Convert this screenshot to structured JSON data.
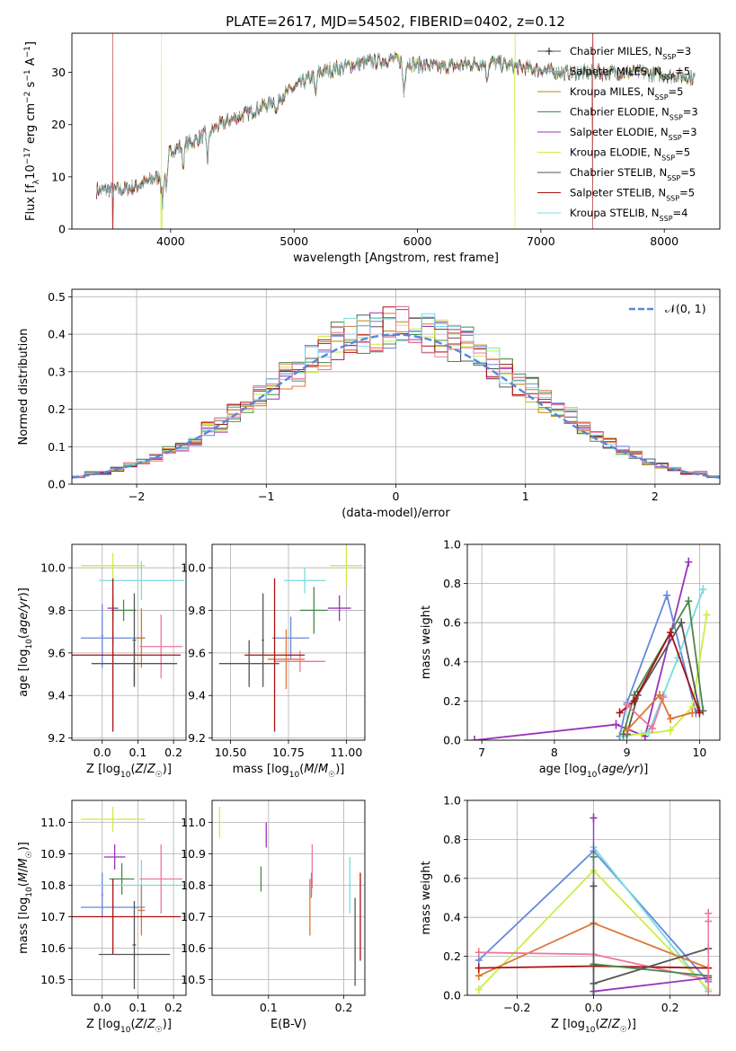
{
  "title": "PLATE=2617, MJD=54502, FIBERID=0402, z=0.12",
  "colors": {
    "chabrier_miles": "#6688dd",
    "salpeter_miles": "#dd7733",
    "kroupa_miles": "#b8860b",
    "chabrier_elodie": "#4a8a4a",
    "salpeter_elodie": "#9933bb",
    "kroupa_elodie": "#ccee44",
    "chabrier_stelib": "#555555",
    "salpeter_stelib": "#aa1111",
    "kroupa_stelib": "#77dddd",
    "pink": "#ee7799",
    "normal": "#5588dd",
    "grid": "#b0b0b0"
  },
  "chart_data": [
    {
      "id": "spectrum",
      "type": "line",
      "xlabel": "wavelength [Angstrom, rest frame]",
      "ylabel": "Flux [f_λ10^-17 erg cm^-2 s^-1 A^-1]",
      "xlim": [
        3200,
        8450
      ],
      "ylim": [
        0,
        37.5
      ],
      "xticks": [
        4000,
        5000,
        6000,
        7000,
        8000
      ],
      "yticks": [
        0,
        10,
        20,
        30
      ],
      "legend_position": "right",
      "series": [
        {
          "name": "Chabrier MILES, N_SSP=3",
          "name_main": "Chabrier MILES, N",
          "name_sub": "SSP",
          "name_tail": "=3",
          "color_key": "chabrier_stelib",
          "marker": "+"
        },
        {
          "name": "Salpeter MILES, N_SSP=5",
          "name_main": "Salpeter MILES, N",
          "name_sub": "SSP",
          "name_tail": "=5",
          "color_key": "pink"
        },
        {
          "name": "Kroupa MILES, N_SSP=5",
          "name_main": "Kroupa MILES, N",
          "name_sub": "SSP",
          "name_tail": "=5",
          "color_key": "kroupa_miles"
        },
        {
          "name": "Chabrier ELODIE, N_SSP=3",
          "name_main": "Chabrier ELODIE, N",
          "name_sub": "SSP",
          "name_tail": "=3",
          "color_key": "chabrier_elodie"
        },
        {
          "name": "Salpeter ELODIE, N_SSP=3",
          "name_main": "Salpeter ELODIE, N",
          "name_sub": "SSP",
          "name_tail": "=3",
          "color_key": "salpeter_elodie"
        },
        {
          "name": "Kroupa ELODIE, N_SSP=5",
          "name_main": "Kroupa ELODIE, N",
          "name_sub": "SSP",
          "name_tail": "=5",
          "color_key": "kroupa_elodie"
        },
        {
          "name": "Chabrier STELIB, N_SSP=5",
          "name_main": "Chabrier STELIB, N",
          "name_sub": "SSP",
          "name_tail": "=5",
          "color_key": "chabrier_stelib"
        },
        {
          "name": "Salpeter STELIB, N_SSP=5",
          "name_main": "Salpeter STELIB, N",
          "name_sub": "SSP",
          "name_tail": "=5",
          "color_key": "salpeter_stelib"
        },
        {
          "name": "Kroupa STELIB, N_SSP=4",
          "name_main": "Kroupa STELIB, N",
          "name_sub": "SSP",
          "name_tail": "=4",
          "color_key": "kroupa_stelib"
        }
      ],
      "continuum": [
        [
          3400,
          7.5
        ],
        [
          3600,
          7.5
        ],
        [
          3700,
          8
        ],
        [
          3800,
          9
        ],
        [
          3900,
          10
        ],
        [
          4000,
          15
        ],
        [
          4200,
          17
        ],
        [
          4400,
          20
        ],
        [
          4600,
          22
        ],
        [
          4800,
          24
        ],
        [
          5000,
          27
        ],
        [
          5200,
          30
        ],
        [
          5400,
          31
        ],
        [
          5600,
          32
        ],
        [
          5800,
          32.5
        ],
        [
          6000,
          31.5
        ],
        [
          6200,
          31
        ],
        [
          6400,
          31.5
        ],
        [
          6600,
          32
        ],
        [
          6800,
          31
        ],
        [
          7000,
          30.5
        ],
        [
          7200,
          30
        ],
        [
          7400,
          30
        ],
        [
          7600,
          30
        ],
        [
          7800,
          30
        ],
        [
          8000,
          29.5
        ],
        [
          8250,
          29
        ]
      ],
      "dips": [
        [
          3934,
          7
        ],
        [
          3968,
          6
        ],
        [
          4102,
          4
        ],
        [
          4300,
          5
        ],
        [
          4861,
          3
        ],
        [
          5175,
          4
        ],
        [
          5890,
          6
        ],
        [
          6563,
          3
        ]
      ],
      "spikes_to_zero": [
        [
          3530,
          "salpeter_stelib"
        ],
        [
          3925,
          "kroupa_elodie"
        ],
        [
          6790,
          "kroupa_elodie"
        ],
        [
          7420,
          "salpeter_stelib"
        ]
      ]
    },
    {
      "id": "residuals",
      "type": "histogram",
      "xlabel": "(data-model)/error",
      "ylabel": "Normed distribution",
      "xlim": [
        -2.5,
        2.5
      ],
      "ylim": [
        0,
        0.52
      ],
      "xticks": [
        -2,
        -1,
        0,
        1,
        2
      ],
      "yticks": [
        0.0,
        0.1,
        0.2,
        0.3,
        0.4,
        0.5
      ],
      "bins": 50,
      "legend_position": "top-right",
      "legend": "𝒩(0,1)",
      "legend_main": "𝒩(0, 1)",
      "reference_curve": "normal pdf, mean 0, sigma 1",
      "envelope": [
        0.02,
        0.03,
        0.03,
        0.04,
        0.05,
        0.06,
        0.07,
        0.09,
        0.1,
        0.12,
        0.15,
        0.16,
        0.19,
        0.21,
        0.24,
        0.25,
        0.29,
        0.3,
        0.33,
        0.35,
        0.38,
        0.39,
        0.4,
        0.41,
        0.42,
        0.42,
        0.41,
        0.4,
        0.39,
        0.38,
        0.37,
        0.34,
        0.32,
        0.3,
        0.27,
        0.25,
        0.22,
        0.2,
        0.18,
        0.15,
        0.13,
        0.11,
        0.09,
        0.08,
        0.06,
        0.05,
        0.04,
        0.03,
        0.03,
        0.02
      ]
    },
    {
      "id": "z_age",
      "type": "scatter",
      "xlabel": "Z [log10(Z/Z☉)]",
      "ylabel": "age  [log10(age/yr)]",
      "xlim": [
        -0.085,
        0.235
      ],
      "ylim": [
        9.19,
        10.11
      ],
      "xticks": [
        0.0,
        0.1,
        0.2
      ],
      "yticks": [
        9.2,
        9.4,
        9.6,
        9.8,
        10.0
      ],
      "points": [
        {
          "color_key": "kroupa_elodie",
          "x": 0.03,
          "xerr": 0.09,
          "y": 10.01,
          "yerr": 0.06
        },
        {
          "color_key": "kroupa_stelib",
          "x": 0.11,
          "xerr": 0.12,
          "y": 9.94,
          "yerr": 0.09
        },
        {
          "color_key": "chabrier_miles",
          "x": 0.0,
          "xerr": 0.003,
          "y": 9.68,
          "yerr": 0.15
        },
        {
          "color_key": "chabrier_miles",
          "x": 0.03,
          "xerr": 0.09,
          "y": 9.67,
          "yerr": 0.03
        },
        {
          "color_key": "salpeter_elodie",
          "x": 0.03,
          "xerr": 0.015,
          "y": 9.81,
          "yerr": 0.05
        },
        {
          "color_key": "chabrier_elodie",
          "x": 0.06,
          "xerr": 0.035,
          "y": 9.8,
          "yerr": 0.05
        },
        {
          "color_key": "salpeter_miles",
          "x": 0.11,
          "xerr": 0.01,
          "y": 9.67,
          "yerr": 0.14
        },
        {
          "color_key": "pink",
          "x": 0.165,
          "xerr": 0.06,
          "y": 9.63,
          "yerr": 0.15
        },
        {
          "color_key": "salpeter_stelib",
          "x": 0.03,
          "xerr": 0.19,
          "y": 9.59,
          "yerr": 0.36
        },
        {
          "color_key": "chabrier_stelib",
          "x": 0.09,
          "xerr": 0.12,
          "y": 9.55,
          "yerr": 0.1
        },
        {
          "color_key": "chabrier_stelib",
          "x": 0.09,
          "xerr": 0.005,
          "y": 9.66,
          "yerr": 0.22
        }
      ]
    },
    {
      "id": "mass_age",
      "type": "scatter",
      "xlabel": "mass [log10(M/M☉)]",
      "ylabel": "",
      "xlim": [
        10.42,
        11.08
      ],
      "ylim": [
        9.19,
        10.11
      ],
      "xticks": [
        10.5,
        10.75,
        11.0
      ],
      "yticks": [
        9.2,
        9.4,
        9.6,
        9.8,
        10.0
      ],
      "points": [
        {
          "color_key": "kroupa_elodie",
          "x": 11.0,
          "xerr": 0.07,
          "y": 10.01,
          "yerr": 0.09
        },
        {
          "color_key": "kroupa_stelib",
          "x": 10.82,
          "xerr": 0.09,
          "y": 9.94,
          "yerr": 0.06
        },
        {
          "color_key": "chabrier_miles",
          "x": 10.76,
          "xerr": 0.08,
          "y": 9.67,
          "yerr": 0.1
        },
        {
          "color_key": "salpeter_elodie",
          "x": 10.97,
          "xerr": 0.05,
          "y": 9.81,
          "yerr": 0.06
        },
        {
          "color_key": "chabrier_elodie",
          "x": 10.86,
          "xerr": 0.06,
          "y": 9.8,
          "yerr": 0.11
        },
        {
          "color_key": "salpeter_miles",
          "x": 10.74,
          "xerr": 0.08,
          "y": 9.57,
          "yerr": 0.14
        },
        {
          "color_key": "pink",
          "x": 10.8,
          "xerr": 0.11,
          "y": 9.56,
          "yerr": 0.05
        },
        {
          "color_key": "salpeter_stelib",
          "x": 10.69,
          "xerr": 0.13,
          "y": 9.59,
          "yerr": 0.36
        },
        {
          "color_key": "chabrier_stelib",
          "x": 10.58,
          "xerr": 0.13,
          "y": 9.55,
          "yerr": 0.11
        },
        {
          "color_key": "chabrier_stelib",
          "x": 10.64,
          "xerr": 0.005,
          "y": 9.66,
          "yerr": 0.22
        }
      ]
    },
    {
      "id": "age_weight",
      "type": "line",
      "xlabel": "age  [log10(age/yr)]",
      "ylabel": "mass weight",
      "xlim": [
        6.8,
        10.28
      ],
      "ylim": [
        0,
        1
      ],
      "xticks": [
        7,
        8,
        9,
        10
      ],
      "yticks": [
        0.0,
        0.2,
        0.4,
        0.6,
        0.8,
        1.0
      ],
      "series": [
        {
          "color_key": "salpeter_elodie",
          "x": [
            6.9,
            8.85,
            9.25,
            9.85
          ],
          "y": [
            0.0,
            0.08,
            0.02,
            0.91
          ]
        },
        {
          "color_key": "chabrier_miles",
          "x": [
            8.9,
            9.0,
            9.55,
            9.95
          ],
          "y": [
            0.02,
            0.19,
            0.74,
            0.14
          ]
        },
        {
          "color_key": "kroupa_stelib",
          "x": [
            8.95,
            9.3,
            9.5,
            9.7,
            10.05
          ],
          "y": [
            0.02,
            0.04,
            0.23,
            0.42,
            0.77
          ]
        },
        {
          "color_key": "kroupa_elodie",
          "x": [
            8.95,
            9.2,
            9.6,
            9.9,
            10.1
          ],
          "y": [
            0.03,
            0.03,
            0.05,
            0.17,
            0.64
          ]
        },
        {
          "color_key": "chabrier_elodie",
          "x": [
            8.95,
            9.1,
            9.85,
            10.05
          ],
          "y": [
            0.03,
            0.23,
            0.71,
            0.15
          ]
        },
        {
          "color_key": "chabrier_stelib",
          "x": [
            9.0,
            9.15,
            9.75,
            10.0
          ],
          "y": [
            0.03,
            0.23,
            0.6,
            0.15
          ]
        },
        {
          "color_key": "salpeter_stelib",
          "x": [
            8.9,
            9.1,
            9.6,
            10.0
          ],
          "y": [
            0.14,
            0.2,
            0.55,
            0.14
          ]
        },
        {
          "color_key": "pink",
          "x": [
            9.0,
            9.35,
            9.5
          ],
          "y": [
            0.18,
            0.06,
            0.22
          ]
        },
        {
          "color_key": "salpeter_miles",
          "x": [
            9.0,
            9.45,
            9.6,
            9.9
          ],
          "y": [
            0.05,
            0.23,
            0.11,
            0.14
          ]
        }
      ]
    },
    {
      "id": "z_mass",
      "type": "scatter",
      "xlabel": "Z [log10(Z/Z☉)]",
      "ylabel": "mass [log10(M/M☉)]",
      "xlim": [
        -0.085,
        0.235
      ],
      "ylim": [
        10.45,
        11.07
      ],
      "xticks": [
        0.0,
        0.1,
        0.2
      ],
      "yticks": [
        10.5,
        10.6,
        10.7,
        10.8,
        10.9,
        11.0
      ],
      "points": [
        {
          "color_key": "kroupa_elodie",
          "x": 0.03,
          "xerr": 0.09,
          "y": 11.01,
          "yerr": 0.04
        },
        {
          "color_key": "salpeter_elodie",
          "x": 0.035,
          "xerr": 0.03,
          "y": 10.89,
          "yerr": 0.04
        },
        {
          "color_key": "chabrier_miles",
          "x": 0.0,
          "xerr": 0.003,
          "y": 10.77,
          "yerr": 0.07
        },
        {
          "color_key": "chabrier_miles",
          "x": 0.03,
          "xerr": 0.09,
          "y": 10.73,
          "yerr": 0.005
        },
        {
          "color_key": "chabrier_elodie",
          "x": 0.055,
          "xerr": 0.035,
          "y": 10.82,
          "yerr": 0.05
        },
        {
          "color_key": "kroupa_stelib",
          "x": 0.11,
          "xerr": 0.12,
          "y": 10.8,
          "yerr": 0.08
        },
        {
          "color_key": "pink",
          "x": 0.165,
          "xerr": 0.06,
          "y": 10.82,
          "yerr": 0.11
        },
        {
          "color_key": "salpeter_miles",
          "x": 0.11,
          "xerr": 0.01,
          "y": 10.72,
          "yerr": 0.08
        },
        {
          "color_key": "salpeter_stelib",
          "x": 0.03,
          "xerr": 0.19,
          "y": 10.7,
          "yerr": 0.12
        },
        {
          "color_key": "chabrier_stelib",
          "x": 0.09,
          "xerr": 0.1,
          "y": 10.58,
          "yerr": 0.005
        },
        {
          "color_key": "chabrier_stelib",
          "x": 0.09,
          "xerr": 0.005,
          "y": 10.61,
          "yerr": 0.14
        }
      ]
    },
    {
      "id": "ebv_mass",
      "type": "scatter",
      "xlabel": "E(B-V)",
      "ylabel": "",
      "xlim": [
        0.025,
        0.228
      ],
      "ylim": [
        10.45,
        11.07
      ],
      "xticks": [
        0.1,
        0.2
      ],
      "yticks": [
        10.5,
        10.6,
        10.7,
        10.8,
        10.9,
        11.0
      ],
      "points": [
        {
          "color_key": "kroupa_elodie",
          "x": 0.035,
          "y": 11.0,
          "yerr": 0.05
        },
        {
          "color_key": "chabrier_elodie",
          "x": 0.09,
          "y": 10.82,
          "yerr": 0.04
        },
        {
          "color_key": "salpeter_elodie",
          "x": 0.097,
          "y": 10.96,
          "yerr": 0.04
        },
        {
          "color_key": "chabrier_miles",
          "x": 0.157,
          "y": 10.8,
          "yerr": 0.04
        },
        {
          "color_key": "salpeter_miles",
          "x": 0.155,
          "y": 10.73,
          "yerr": 0.09
        },
        {
          "color_key": "pink",
          "x": 0.158,
          "y": 10.86,
          "yerr": 0.07
        },
        {
          "color_key": "kroupa_stelib",
          "x": 0.208,
          "y": 10.8,
          "yerr": 0.09
        },
        {
          "color_key": "chabrier_stelib",
          "x": 0.215,
          "y": 10.62,
          "yerr": 0.14
        },
        {
          "color_key": "salpeter_stelib",
          "x": 0.222,
          "y": 10.7,
          "yerr": 0.14
        }
      ]
    },
    {
      "id": "z_weight",
      "type": "line",
      "xlabel": "Z [log10(Z/Z☉)]",
      "ylabel": "mass weight",
      "xlim": [
        -0.33,
        0.33
      ],
      "ylim": [
        0,
        1
      ],
      "xticks": [
        -0.2,
        0.0,
        0.2
      ],
      "yticks": [
        0.0,
        0.2,
        0.4,
        0.6,
        0.8,
        1.0
      ],
      "series": [
        {
          "color_key": "chabrier_miles",
          "x": [
            -0.3,
            0.0,
            0.3
          ],
          "y": [
            0.18,
            0.74,
            0.07
          ]
        },
        {
          "color_key": "kroupa_stelib",
          "x": [
            0.0,
            0.3
          ],
          "y": [
            0.76,
            0.02
          ]
        },
        {
          "color_key": "kroupa_elodie",
          "x": [
            -0.3,
            0.0,
            0.3
          ],
          "y": [
            0.03,
            0.64,
            0.03
          ]
        },
        {
          "color_key": "salpeter_miles",
          "x": [
            -0.3,
            0.0,
            0.3
          ],
          "y": [
            0.1,
            0.37,
            0.14
          ]
        },
        {
          "color_key": "pink",
          "x": [
            -0.3,
            0.0,
            0.3
          ],
          "y": [
            0.22,
            0.21,
            0.08
          ]
        },
        {
          "color_key": "salpeter_stelib",
          "x": [
            -0.3,
            0.0,
            0.3
          ],
          "y": [
            0.14,
            0.15,
            0.14
          ]
        },
        {
          "color_key": "chabrier_elodie",
          "x": [
            0.0,
            0.3
          ],
          "y": [
            0.16,
            0.1
          ]
        },
        {
          "color_key": "chabrier_stelib",
          "x": [
            0.0,
            0.3
          ],
          "y": [
            0.06,
            0.24
          ]
        },
        {
          "color_key": "salpeter_elodie",
          "x": [
            0.0,
            0.3
          ],
          "y": [
            0.02,
            0.09
          ]
        }
      ],
      "extra_markers": [
        {
          "color_key": "salpeter_elodie",
          "x": 0.0,
          "y": 0.91
        },
        {
          "color_key": "chabrier_elodie",
          "x": 0.0,
          "y": 0.71
        },
        {
          "color_key": "chabrier_stelib",
          "x": 0.0,
          "y": 0.56
        },
        {
          "color_key": "pink",
          "x": 0.3,
          "y": 0.42
        },
        {
          "color_key": "pink",
          "x": 0.3,
          "y": 0.38
        }
      ]
    }
  ]
}
